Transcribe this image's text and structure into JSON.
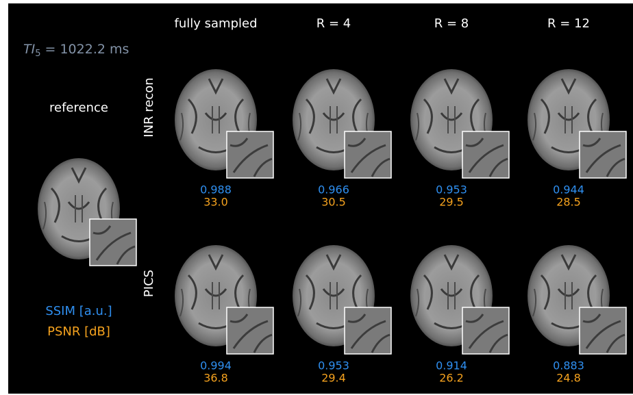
{
  "annotation": {
    "symbol": "TI",
    "subscript": "5",
    "text": "= 1022.2 ms"
  },
  "reference_label": "reference",
  "columns": [
    "fully sampled",
    "R = 4",
    "R = 8",
    "R = 12"
  ],
  "rows": [
    {
      "label": "INR recon",
      "ssim": [
        "0.988",
        "0.966",
        "0.953",
        "0.944"
      ],
      "psnr": [
        "33.0",
        "30.5",
        "29.5",
        "28.5"
      ]
    },
    {
      "label": "PICS",
      "ssim": [
        "0.994",
        "0.953",
        "0.914",
        "0.883"
      ],
      "psnr": [
        "36.8",
        "29.4",
        "26.2",
        "24.8"
      ]
    }
  ],
  "legend": {
    "ssim": "SSIM [a.u.]",
    "psnr": "PSNR [dB]"
  }
}
